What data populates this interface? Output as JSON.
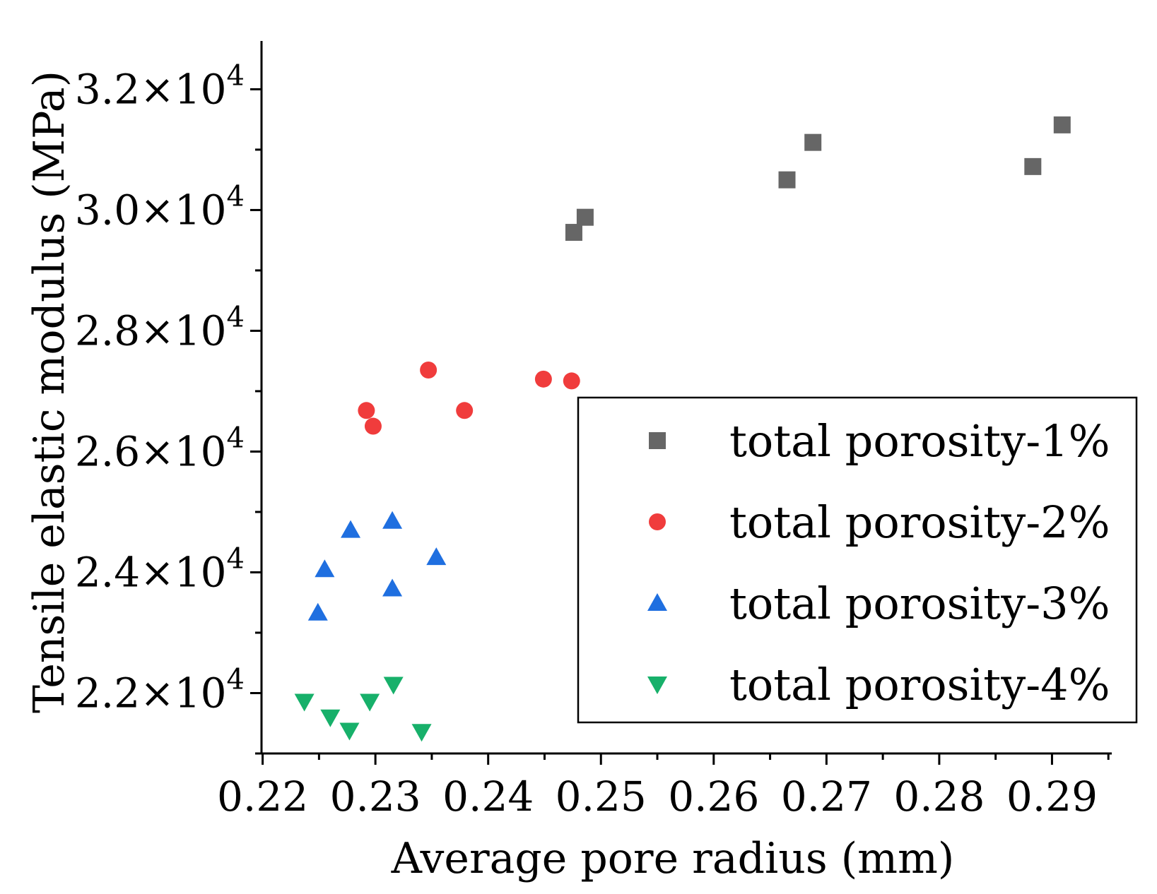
{
  "chart_data": {
    "type": "scatter",
    "title": "",
    "xlabel": "Average pore radius (mm)",
    "ylabel": "Tensile elastic modulus (MPa)",
    "xlim": [
      0.2199,
      0.2953
    ],
    "ylim": [
      21000,
      32800
    ],
    "x_ticks": [
      0.22,
      0.23,
      0.24,
      0.25,
      0.26,
      0.27,
      0.28,
      0.29
    ],
    "x_tick_labels": [
      "0.22",
      "0.23",
      "0.24",
      "0.25",
      "0.26",
      "0.27",
      "0.28",
      "0.29"
    ],
    "y_ticks": [
      {
        "value": 22000,
        "mantissa": "2.2",
        "times": "×10",
        "exp": "4"
      },
      {
        "value": 24000,
        "mantissa": "2.4",
        "times": "×10",
        "exp": "4"
      },
      {
        "value": 26000,
        "mantissa": "2.6",
        "times": "×10",
        "exp": "4"
      },
      {
        "value": 28000,
        "mantissa": "2.8",
        "times": "×10",
        "exp": "4"
      },
      {
        "value": 30000,
        "mantissa": "3.0",
        "times": "×10",
        "exp": "4"
      },
      {
        "value": 32000,
        "mantissa": "3.2",
        "times": "×10",
        "exp": "4"
      }
    ],
    "legend_position": "bottom-right",
    "series": [
      {
        "name": "total porosity-1%",
        "marker": "square",
        "color": "#666666",
        "points": [
          {
            "x": 0.2476,
            "y": 29630
          },
          {
            "x": 0.2486,
            "y": 29880
          },
          {
            "x": 0.2665,
            "y": 30500
          },
          {
            "x": 0.2688,
            "y": 31120
          },
          {
            "x": 0.2883,
            "y": 30720
          },
          {
            "x": 0.2909,
            "y": 31410
          }
        ]
      },
      {
        "name": "total porosity-2%",
        "marker": "circle",
        "color": "#f03c3c",
        "points": [
          {
            "x": 0.2292,
            "y": 26680
          },
          {
            "x": 0.2298,
            "y": 26420
          },
          {
            "x": 0.2347,
            "y": 27350
          },
          {
            "x": 0.2379,
            "y": 26680
          },
          {
            "x": 0.2449,
            "y": 27200
          },
          {
            "x": 0.2474,
            "y": 27170
          }
        ]
      },
      {
        "name": "total porosity-3%",
        "marker": "triangle-up",
        "color": "#1f6fe0",
        "points": [
          {
            "x": 0.2249,
            "y": 23330
          },
          {
            "x": 0.2255,
            "y": 24050
          },
          {
            "x": 0.2278,
            "y": 24700
          },
          {
            "x": 0.2315,
            "y": 24850
          },
          {
            "x": 0.2315,
            "y": 23730
          },
          {
            "x": 0.2354,
            "y": 24250
          }
        ]
      },
      {
        "name": "total porosity-4%",
        "marker": "triangle-down",
        "color": "#17b06a",
        "points": [
          {
            "x": 0.2237,
            "y": 21860
          },
          {
            "x": 0.226,
            "y": 21600
          },
          {
            "x": 0.2277,
            "y": 21380
          },
          {
            "x": 0.2295,
            "y": 21860
          },
          {
            "x": 0.2316,
            "y": 22140
          },
          {
            "x": 0.2341,
            "y": 21360
          }
        ]
      }
    ]
  }
}
